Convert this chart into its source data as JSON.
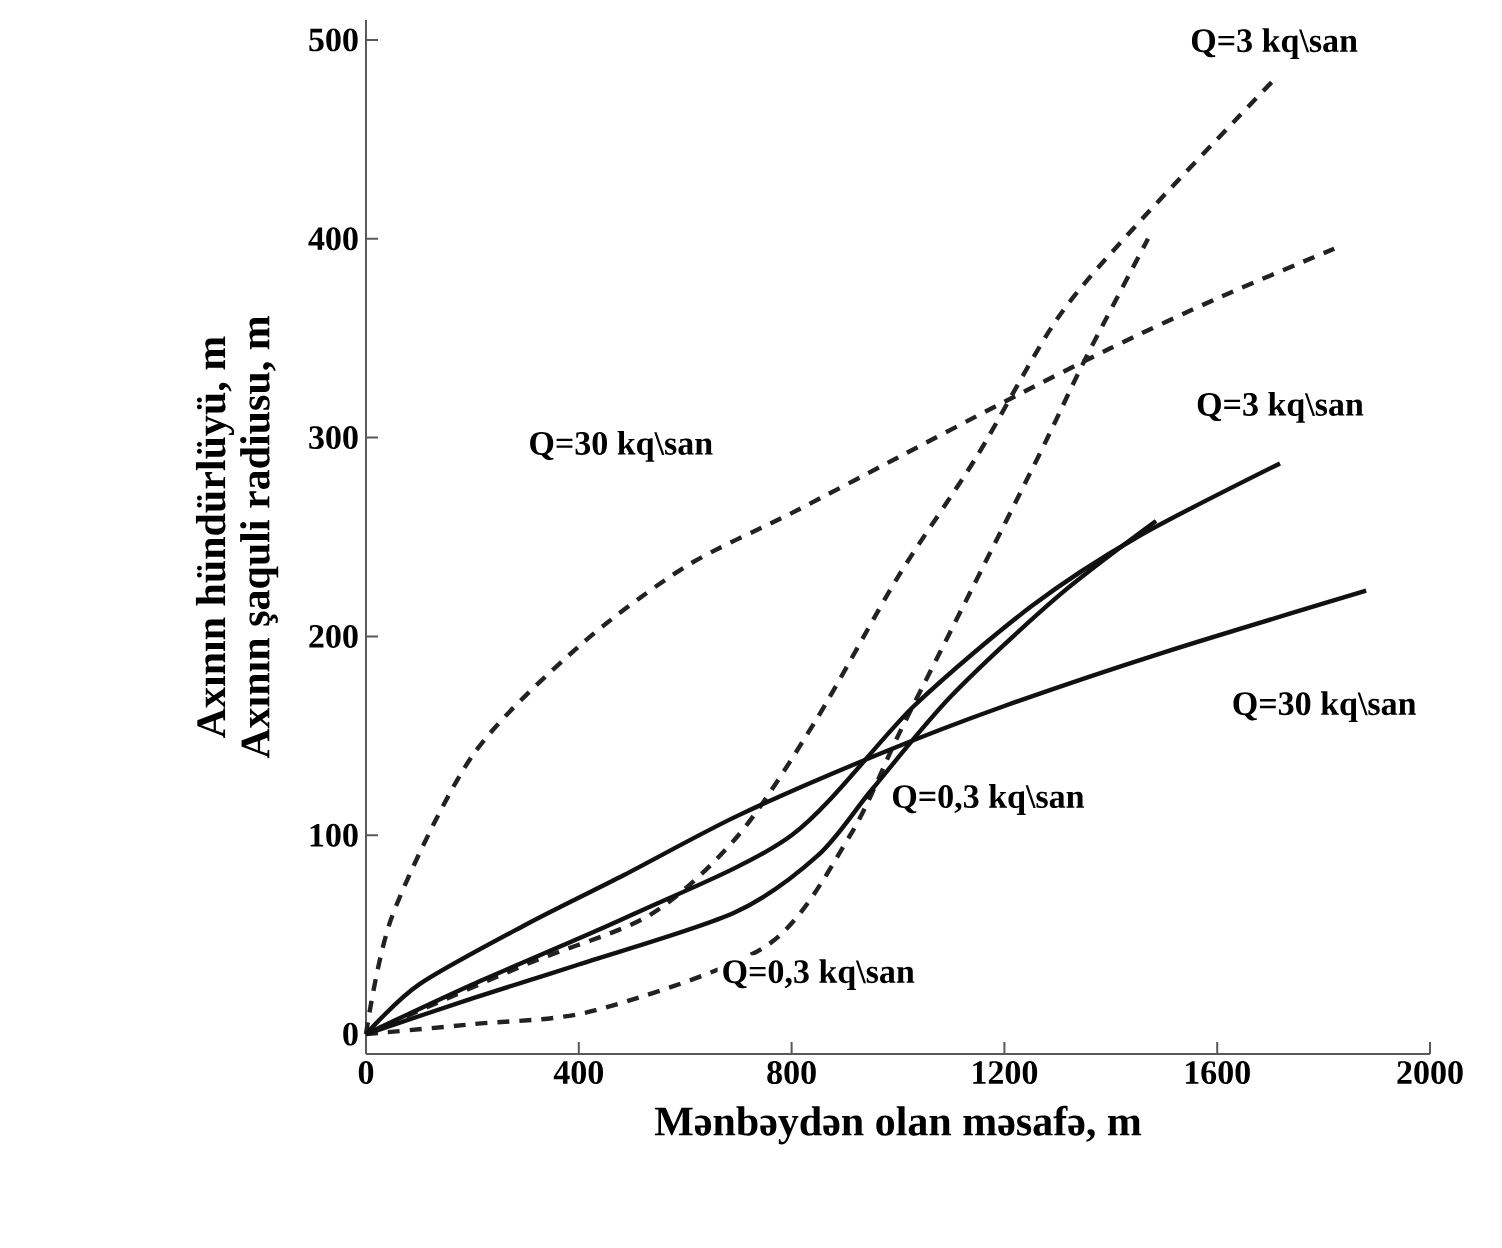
{
  "chart_data": {
    "type": "line",
    "xlabel": "Mənbəydən olan məsafə, m",
    "ylabel": [
      "Axının hündürlüyü, m",
      "Axının şaquli radiusu, m"
    ],
    "xlim": [
      0,
      2000
    ],
    "ylim": [
      -10,
      510
    ],
    "xticks": [
      0,
      400,
      800,
      1200,
      1600,
      2000
    ],
    "yticks": [
      0,
      100,
      200,
      300,
      400,
      500
    ],
    "grid": false,
    "series": [
      {
        "name": "Q=30 kq\\san",
        "line_style": "dashed",
        "color": "#222222",
        "x": [
          0,
          50,
          200,
          400,
          600,
          800,
          1000,
          1200,
          1400,
          1600,
          1820
        ],
        "values": [
          0,
          60,
          140,
          195,
          235,
          262,
          290,
          318,
          345,
          370,
          395
        ]
      },
      {
        "name": "Q=3 kq\\san",
        "line_style": "dashed",
        "color": "#222222",
        "x": [
          0,
          300,
          534,
          700,
          846,
          1000,
          1147,
          1300,
          1459,
          1707
        ],
        "values": [
          0,
          35,
          60,
          100,
          158,
          230,
          290,
          360,
          410,
          480
        ]
      },
      {
        "name": "Q=0,3 kq\\san",
        "line_style": "dashed",
        "color": "#222222",
        "x": [
          0,
          200,
          432,
          756,
          910,
          1000,
          1094,
          1263,
          1353,
          1470
        ],
        "values": [
          0,
          5,
          12,
          45,
          100,
          150,
          200,
          290,
          340,
          400
        ]
      },
      {
        "name": "Q=30 kq\\san",
        "line_style": "solid",
        "color": "#111111",
        "x": [
          0,
          100,
          300,
          485,
          700,
          966,
          1200,
          1500,
          1880
        ],
        "values": [
          0,
          25,
          55,
          80,
          110,
          141,
          165,
          192,
          223
        ]
      },
      {
        "name": "Q=3 kq\\san",
        "line_style": "solid",
        "color": "#111111",
        "x": [
          0,
          200,
          500,
          800,
          1030,
          1250,
          1450,
          1718
        ],
        "values": [
          0,
          25,
          60,
          100,
          165,
          215,
          250,
          287
        ]
      },
      {
        "name": "Q=0,3 kq\\san",
        "line_style": "solid",
        "color": "#111111",
        "x": [
          0,
          200,
          400,
          692,
          850,
          951,
          1100,
          1300,
          1485
        ],
        "values": [
          0,
          18,
          35,
          61,
          90,
          123,
          170,
          220,
          258
        ]
      }
    ]
  }
}
